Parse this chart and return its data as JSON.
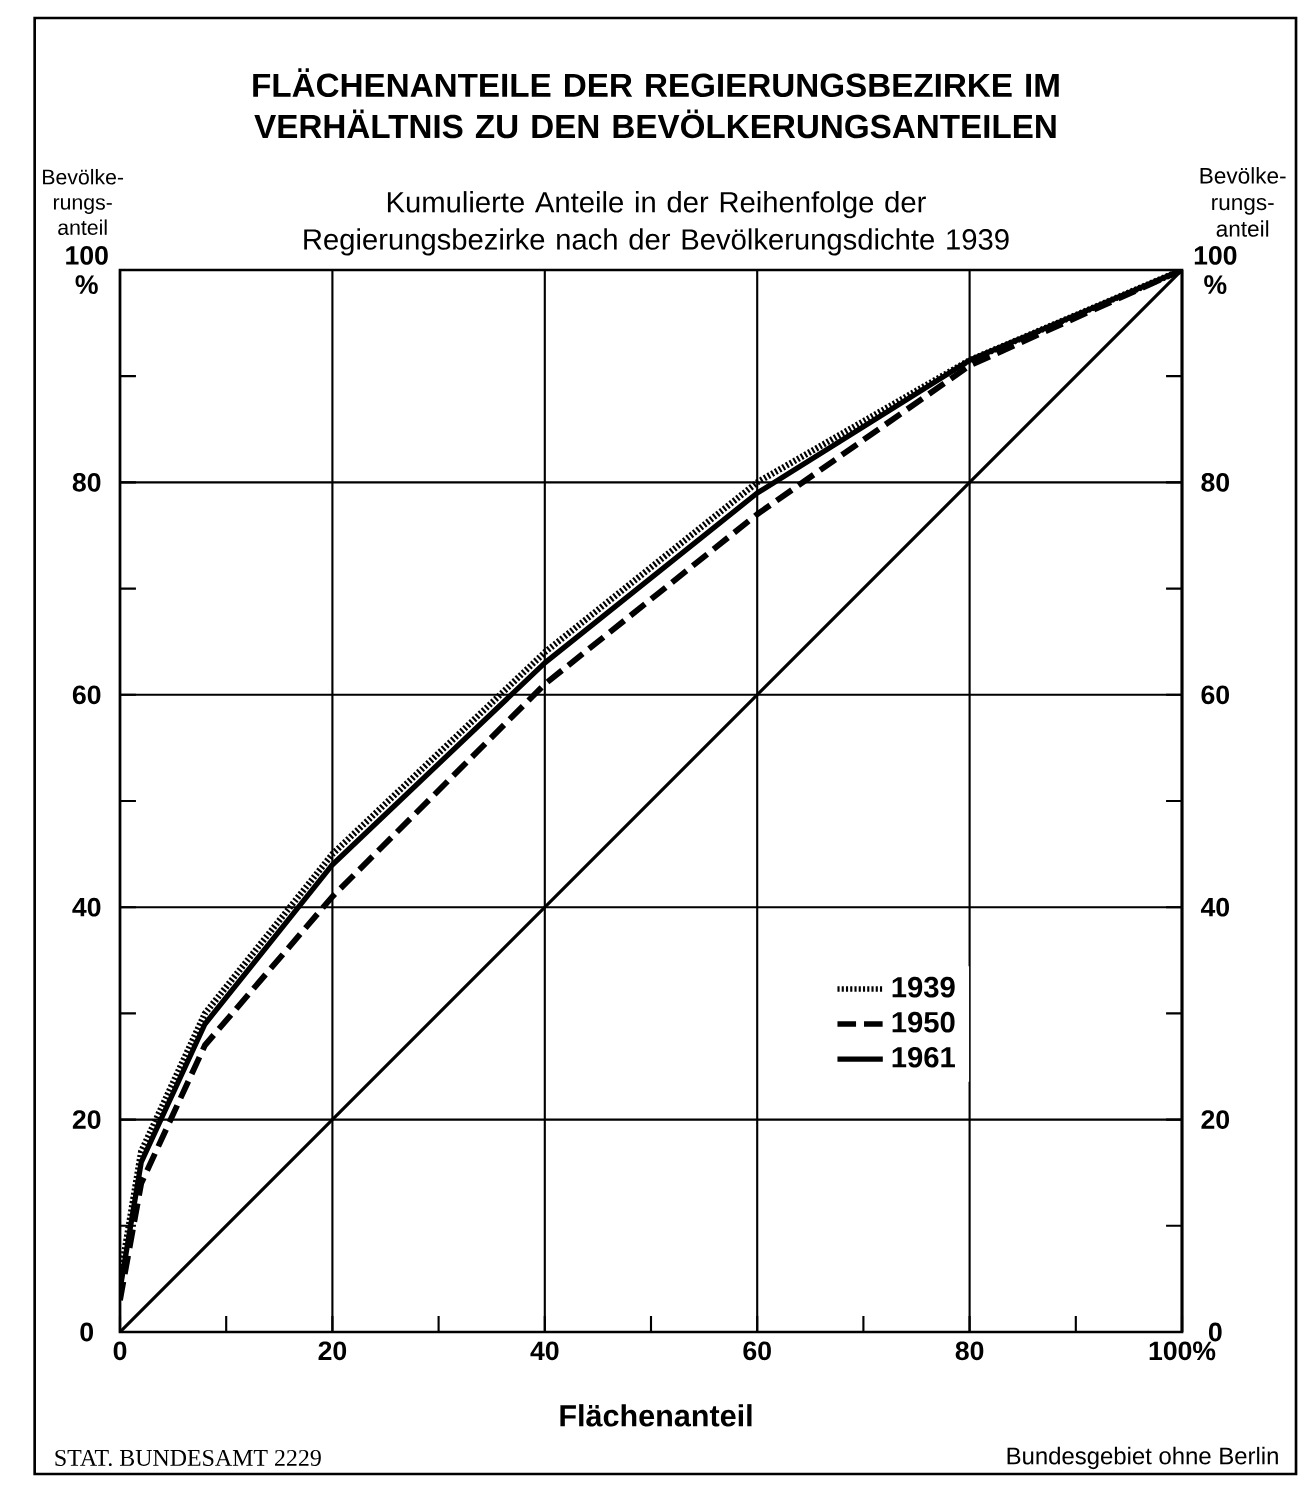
{
  "chart_data": {
    "type": "line",
    "title": "FLÄCHENANTEILE DER REGIERUNGSBEZIRKE IM VERHÄLTNIS ZU DEN BEVÖLKERUNGSANTEILEN",
    "subtitle": "Kumulierte Anteile in der Reihenfolge der Regierungsbezirke nach der Bevölkerungsdichte 1939",
    "xlabel": "Flächenanteil",
    "ylabel": "Bevölke-rungs-anteil",
    "y2label": "Bevölke-rungs-anteil",
    "annotations": [
      "STAT. BUNDESAMT 2229",
      "Bundesgebiet ohne Berlin"
    ],
    "x": [
      0,
      2,
      8,
      20,
      40,
      60,
      80,
      100
    ],
    "series": [
      {
        "name": "1939",
        "color": "#000000",
        "line_style": "dotted",
        "values": [
          5,
          17,
          30,
          45,
          64,
          80,
          91.5,
          100
        ]
      },
      {
        "name": "1950",
        "color": "#000000",
        "line_style": "dashed",
        "values": [
          3,
          14,
          27,
          41,
          61,
          77,
          91,
          100
        ]
      },
      {
        "name": "1961",
        "color": "#000000",
        "line_style": "solid",
        "values": [
          4,
          16,
          29,
          44,
          63,
          79,
          91.5,
          100
        ]
      },
      {
        "color": "#000000",
        "line_style": "solid",
        "x": [
          0,
          100
        ],
        "values": [
          0,
          100
        ]
      }
    ],
    "xlim": [
      0,
      100
    ],
    "ylim": [
      0,
      100
    ],
    "y2lim": [
      0,
      100
    ],
    "xticks": [
      0,
      {
        "value": 10,
        "label": null
      },
      20,
      {
        "value": 30,
        "label": null
      },
      40,
      {
        "value": 50,
        "label": null
      },
      60,
      {
        "value": 70,
        "label": null
      },
      80,
      {
        "value": 90,
        "label": null
      },
      {
        "value": 100,
        "label": "100%"
      }
    ],
    "yticks": [
      0,
      {
        "value": 10,
        "label": null
      },
      20,
      {
        "value": 30,
        "label": null
      },
      40,
      {
        "value": 50,
        "label": null
      },
      60,
      {
        "value": 70,
        "label": null
      },
      80,
      {
        "value": 90,
        "label": null
      },
      {
        "value": 100,
        "label": "100 %"
      }
    ],
    "y2ticks": [
      0,
      {
        "value": 10,
        "label": null
      },
      20,
      {
        "value": 30,
        "label": null
      },
      40,
      {
        "value": 50,
        "label": null
      },
      60,
      {
        "value": 70,
        "label": null
      },
      80,
      {
        "value": 90,
        "label": null
      },
      {
        "value": 100,
        "label": "100 %"
      }
    ],
    "grid": true,
    "legend": "right",
    "marker": "none"
  }
}
